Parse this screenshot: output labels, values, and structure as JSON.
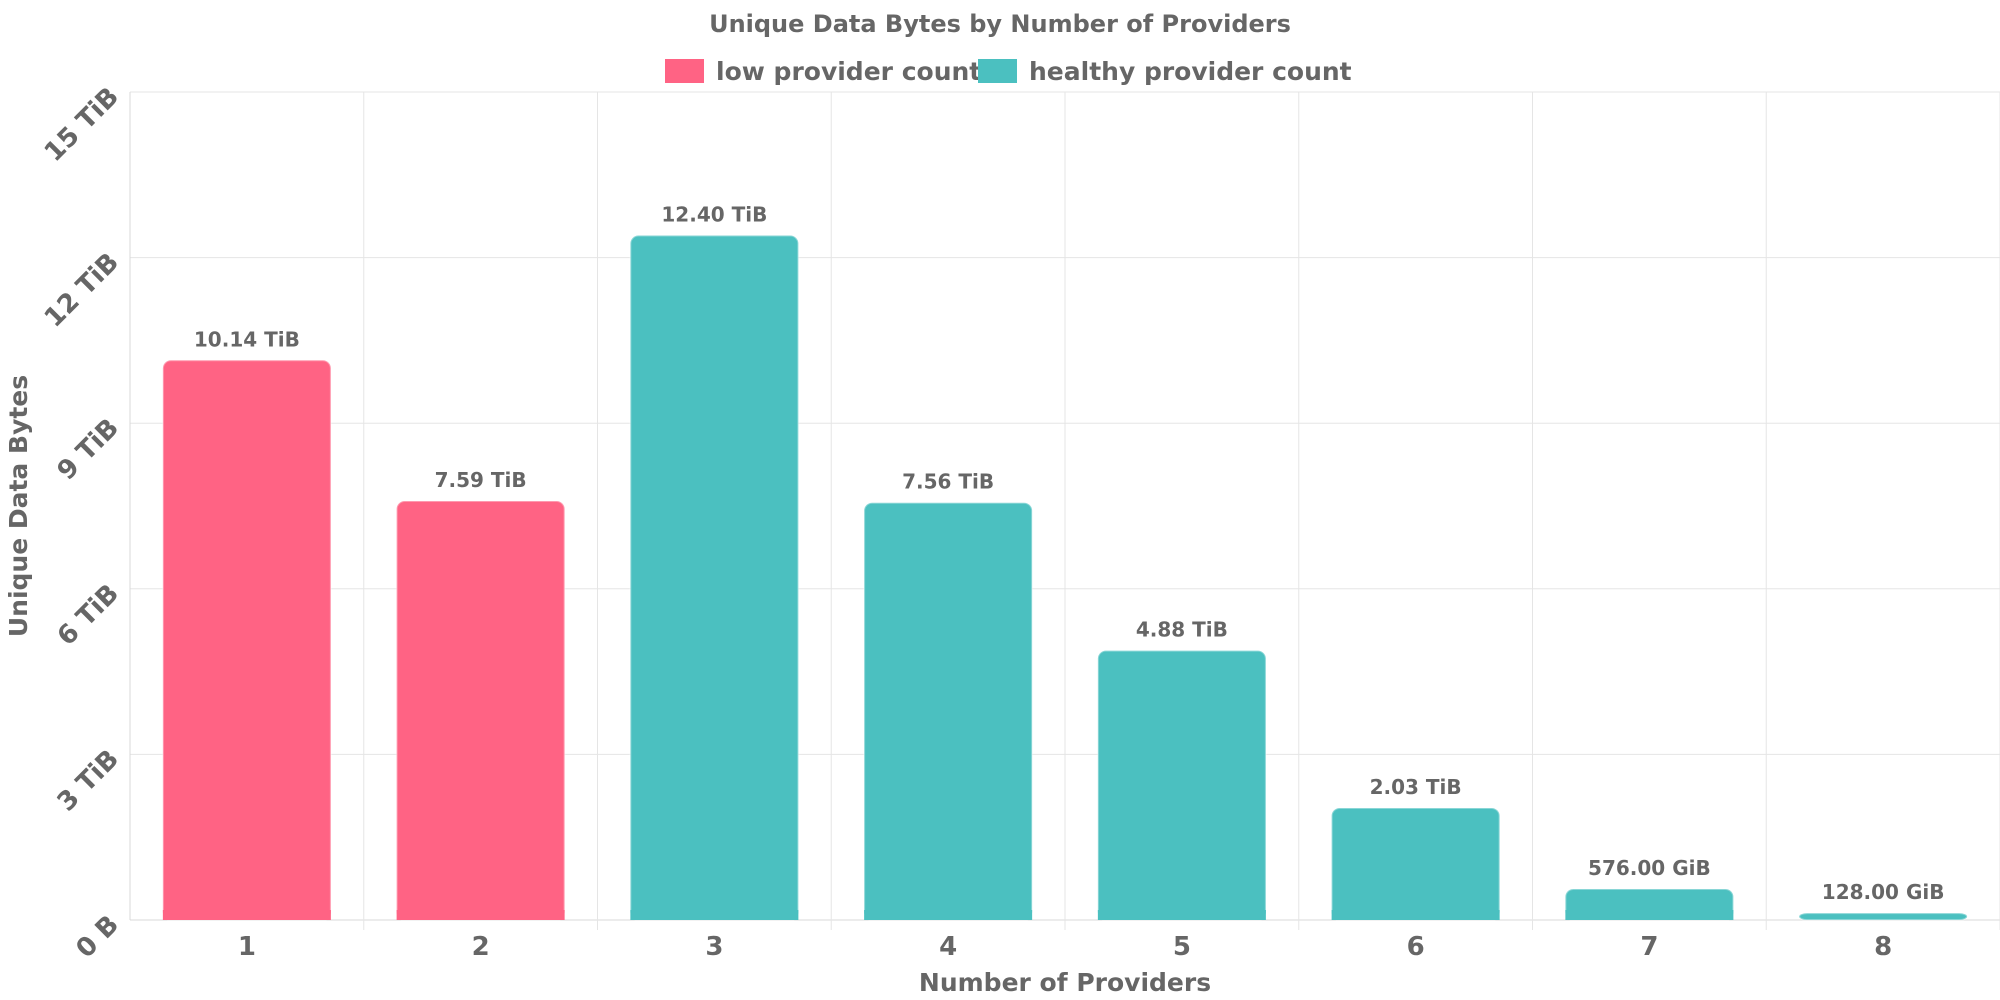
{
  "chart_data": {
    "type": "bar",
    "title": "Unique Data Bytes by Number of Providers",
    "xlabel": "Number of Providers",
    "ylabel": "Unique Data Bytes",
    "categories": [
      "1",
      "2",
      "3",
      "4",
      "5",
      "6",
      "7",
      "8"
    ],
    "values_tib": [
      10.14,
      7.59,
      12.4,
      7.56,
      4.88,
      2.03,
      0.5625,
      0.125
    ],
    "data_labels": [
      "10.14 TiB",
      "7.59 TiB",
      "12.40 TiB",
      "7.56 TiB",
      "4.88 TiB",
      "2.03 TiB",
      "576.00 GiB",
      "128.00 GiB"
    ],
    "bar_groups": [
      "low",
      "low",
      "healthy",
      "healthy",
      "healthy",
      "healthy",
      "healthy",
      "healthy"
    ],
    "y_ticks": [
      0,
      3,
      6,
      9,
      12,
      15
    ],
    "y_tick_labels": [
      "0 B",
      "3 TiB",
      "6 TiB",
      "9 TiB",
      "12 TiB",
      "15 TiB"
    ],
    "ylim": [
      0,
      15
    ],
    "grid": true,
    "legend_position": "top-center",
    "series": [
      {
        "key": "low",
        "name": "low provider count",
        "color": "#ff6384"
      },
      {
        "key": "healthy",
        "name": "healthy provider count",
        "color": "#4bc0c0"
      }
    ]
  }
}
